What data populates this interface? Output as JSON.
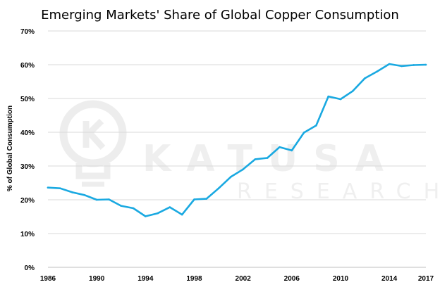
{
  "chart_data": {
    "type": "line",
    "title": "Emerging Markets' Share of Global Copper Consumption",
    "xlabel": "",
    "ylabel": "% of Global Consumption",
    "xlim": [
      1986,
      2017
    ],
    "ylim": [
      0,
      70
    ],
    "x_ticks": [
      "1986",
      "1990",
      "1994",
      "1998",
      "2002",
      "2006",
      "2010",
      "2014",
      "2017"
    ],
    "y_ticks": [
      "0%",
      "10%",
      "20%",
      "30%",
      "40%",
      "50%",
      "60%",
      "70%"
    ],
    "grid": "horizontal",
    "legend": "none",
    "series": [
      {
        "color": "#1aa9e1",
        "x": [
          1986,
          1987,
          1988,
          1989,
          1990,
          1991,
          1992,
          1993,
          1994,
          1995,
          1996,
          1997,
          1998,
          1999,
          2000,
          2001,
          2002,
          2003,
          2004,
          2005,
          2006,
          2007,
          2008,
          2009,
          2010,
          2011,
          2012,
          2013,
          2014,
          2015,
          2016,
          2017
        ],
        "y": [
          23.6,
          23.4,
          22.2,
          21.4,
          20.0,
          20.1,
          18.2,
          17.5,
          15.1,
          16.0,
          17.8,
          15.6,
          20.1,
          20.3,
          23.4,
          26.8,
          29.0,
          32.0,
          32.4,
          35.6,
          34.6,
          39.9,
          42.0,
          50.6,
          49.8,
          52.2,
          56.0,
          58.0,
          60.2,
          59.6,
          59.9,
          60.0
        ]
      }
    ]
  },
  "watermark": {
    "line1": "KATUSA",
    "line2": "RESEARCH"
  },
  "colors": {
    "line": "#1aa9e1",
    "grid": "#d9d9d9",
    "watermark": "#efefef"
  }
}
